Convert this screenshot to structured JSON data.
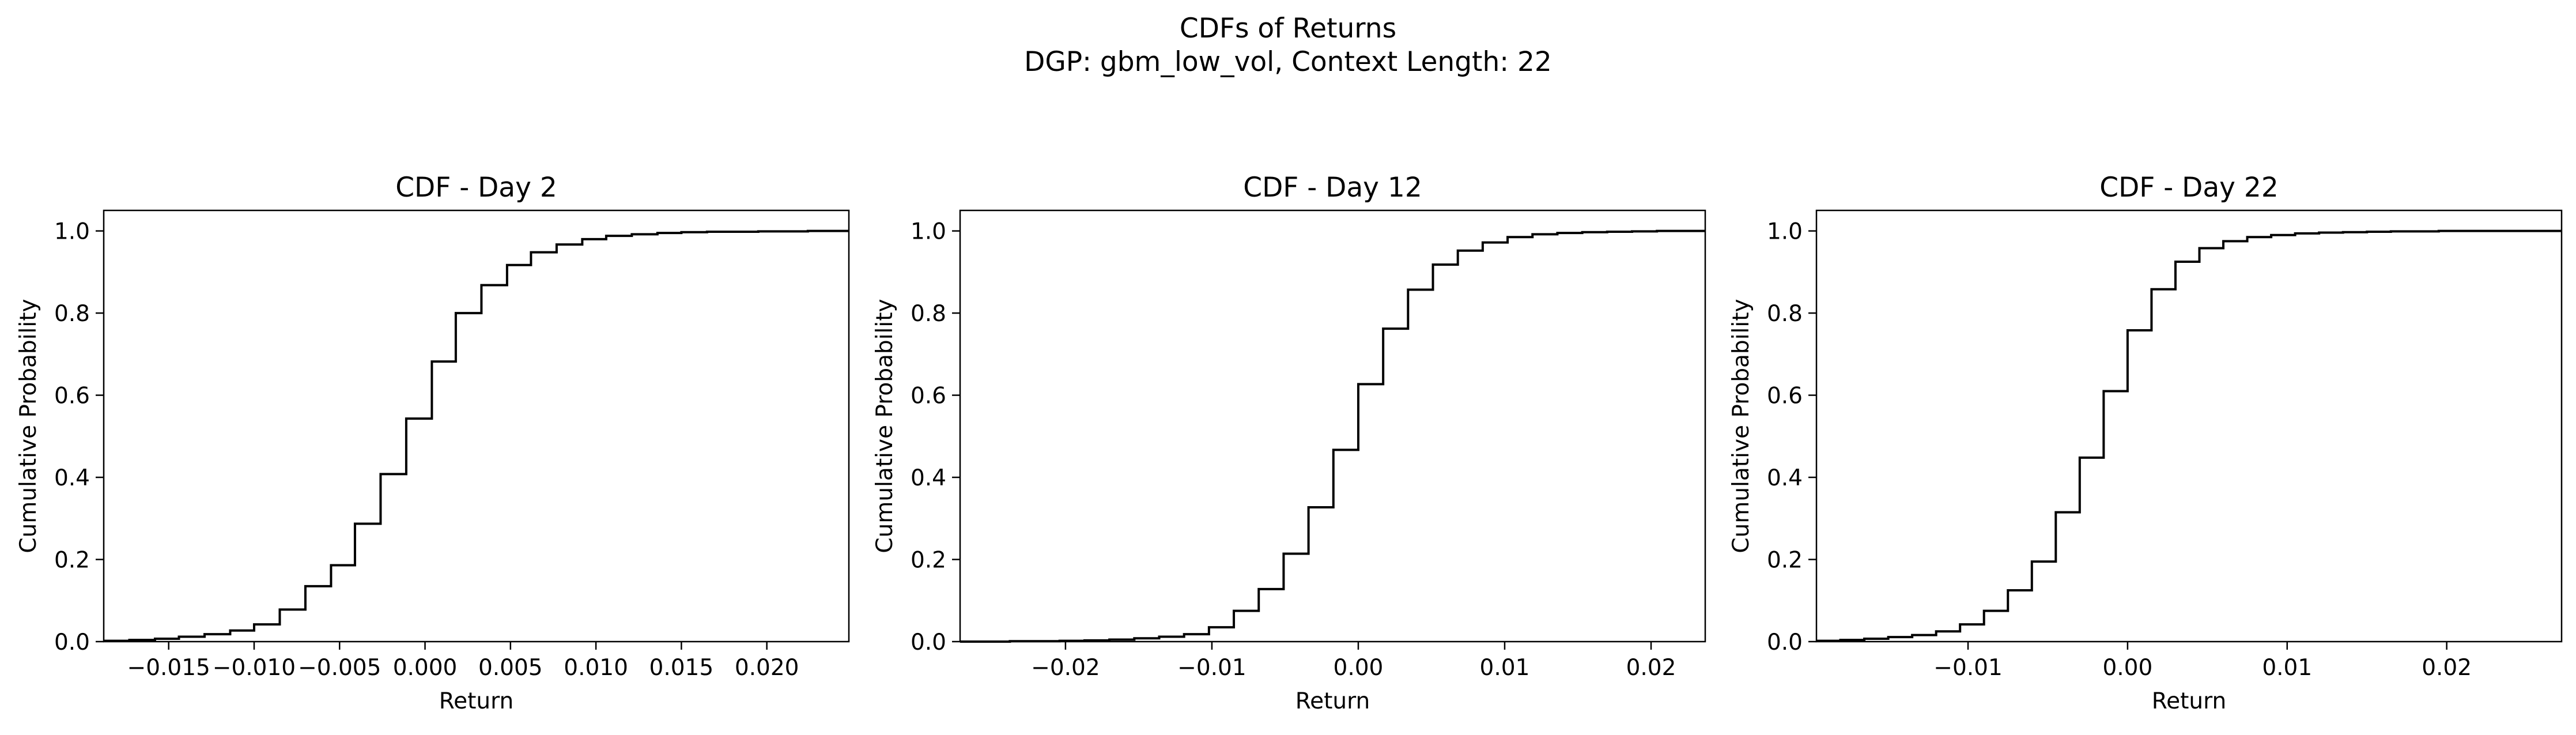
{
  "figure": {
    "title_line1": "CDFs of Returns",
    "title_line2": "DGP: gbm_low_vol, Context Length: 22"
  },
  "chart_data": [
    {
      "type": "line",
      "step": "post",
      "title": "CDF - Day 2",
      "xlabel": "Return",
      "ylabel": "Cumulative Probability",
      "xlim": [
        -0.0188,
        0.0248
      ],
      "ylim": [
        0,
        1.05
      ],
      "xticks": [
        -0.015,
        -0.01,
        -0.005,
        0.0,
        0.005,
        0.01,
        0.015,
        0.02
      ],
      "xtick_labels": [
        "−0.015",
        "−0.010",
        "−0.005",
        "0.000",
        "0.005",
        "0.010",
        "0.015",
        "0.020"
      ],
      "yticks": [
        0.0,
        0.2,
        0.4,
        0.6,
        0.8,
        1.0
      ],
      "ytick_labels": [
        "0.0",
        "0.2",
        "0.4",
        "0.6",
        "0.8",
        "1.0"
      ],
      "color": "#000000",
      "x": [
        -0.0188,
        -0.0173,
        -0.0158,
        -0.0144,
        -0.0129,
        -0.0114,
        -0.01,
        -0.0085,
        -0.007,
        -0.0055,
        -0.0041,
        -0.0026,
        -0.0011,
        0.0004,
        0.0018,
        0.0033,
        0.0048,
        0.0062,
        0.0077,
        0.0092,
        0.0106,
        0.0121,
        0.0136,
        0.015,
        0.0165,
        0.018,
        0.0195,
        0.0209,
        0.0224,
        0.0239,
        0.0248
      ],
      "y": [
        0.002,
        0.004,
        0.007,
        0.012,
        0.018,
        0.027,
        0.042,
        0.078,
        0.135,
        0.186,
        0.287,
        0.408,
        0.543,
        0.682,
        0.8,
        0.868,
        0.917,
        0.948,
        0.967,
        0.98,
        0.988,
        0.992,
        0.995,
        0.997,
        0.998,
        0.998,
        0.999,
        0.999,
        1.0,
        1.0,
        1.0
      ]
    },
    {
      "type": "line",
      "step": "post",
      "title": "CDF - Day 12",
      "xlabel": "Return",
      "ylabel": "Cumulative Probability",
      "xlim": [
        -0.0272,
        0.0237
      ],
      "ylim": [
        0,
        1.05
      ],
      "xticks": [
        -0.02,
        -0.01,
        0.0,
        0.01,
        0.02
      ],
      "xtick_labels": [
        "−0.02",
        "−0.01",
        "0.00",
        "0.01",
        "0.02"
      ],
      "yticks": [
        0.0,
        0.2,
        0.4,
        0.6,
        0.8,
        1.0
      ],
      "ytick_labels": [
        "0.0",
        "0.2",
        "0.4",
        "0.6",
        "0.8",
        "1.0"
      ],
      "color": "#000000",
      "x": [
        -0.0272,
        -0.0255,
        -0.0238,
        -0.0221,
        -0.0204,
        -0.0187,
        -0.017,
        -0.0153,
        -0.0136,
        -0.0119,
        -0.0102,
        -0.0085,
        -0.0068,
        -0.0051,
        -0.0034,
        -0.0017,
        0.0,
        0.0017,
        0.0034,
        0.0051,
        0.0068,
        0.0085,
        0.0102,
        0.0119,
        0.0136,
        0.0153,
        0.017,
        0.0187,
        0.0204,
        0.0221,
        0.0237
      ],
      "y": [
        0.0,
        0.0,
        0.001,
        0.001,
        0.002,
        0.003,
        0.005,
        0.008,
        0.012,
        0.018,
        0.035,
        0.075,
        0.128,
        0.214,
        0.327,
        0.467,
        0.627,
        0.762,
        0.857,
        0.918,
        0.952,
        0.972,
        0.985,
        0.992,
        0.995,
        0.997,
        0.998,
        0.999,
        1.0,
        1.0,
        1.0
      ]
    },
    {
      "type": "line",
      "step": "post",
      "title": "CDF - Day 22",
      "xlabel": "Return",
      "ylabel": "Cumulative Probability",
      "xlim": [
        -0.0195,
        0.0272
      ],
      "ylim": [
        0,
        1.05
      ],
      "xticks": [
        -0.01,
        0.0,
        0.01,
        0.02
      ],
      "xtick_labels": [
        "−0.01",
        "0.00",
        "0.01",
        "0.02"
      ],
      "yticks": [
        0.0,
        0.2,
        0.4,
        0.6,
        0.8,
        1.0
      ],
      "ytick_labels": [
        "0.0",
        "0.2",
        "0.4",
        "0.6",
        "0.8",
        "1.0"
      ],
      "color": "#000000",
      "x": [
        -0.0195,
        -0.018,
        -0.0165,
        -0.015,
        -0.0135,
        -0.012,
        -0.0105,
        -0.009,
        -0.0075,
        -0.006,
        -0.0045,
        -0.003,
        -0.0015,
        0.0,
        0.0015,
        0.003,
        0.0045,
        0.006,
        0.0075,
        0.009,
        0.0105,
        0.012,
        0.0135,
        0.015,
        0.0165,
        0.018,
        0.0195,
        0.021,
        0.0225,
        0.024,
        0.0255,
        0.0272
      ],
      "y": [
        0.002,
        0.004,
        0.007,
        0.011,
        0.016,
        0.025,
        0.042,
        0.075,
        0.125,
        0.195,
        0.315,
        0.448,
        0.61,
        0.758,
        0.858,
        0.925,
        0.958,
        0.975,
        0.985,
        0.99,
        0.994,
        0.996,
        0.997,
        0.998,
        0.999,
        0.999,
        1.0,
        1.0,
        1.0,
        1.0,
        1.0,
        1.0
      ]
    }
  ]
}
